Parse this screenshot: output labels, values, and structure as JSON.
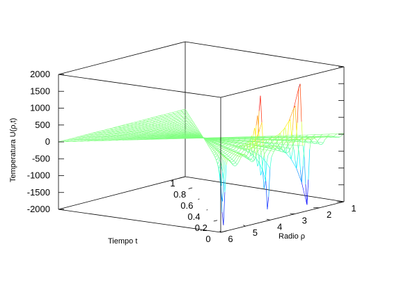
{
  "chart_data": {
    "type": "surface-3d",
    "title": "",
    "xlabel": "Tiempo t",
    "ylabel": "Radio ρ",
    "zlabel": "Temperatura U(ρ,t)",
    "x_ticks": [
      "1",
      "0.8",
      "0.6",
      "0.4",
      "0.2",
      "0"
    ],
    "y_ticks": [
      "1",
      "2",
      "3",
      "4",
      "5",
      "6"
    ],
    "z_ticks": [
      "2000",
      "1500",
      "1000",
      "500",
      "0",
      "-500",
      "-1000",
      "-1500",
      "-2000"
    ],
    "xlim": [
      0,
      1
    ],
    "ylim": [
      1,
      6
    ],
    "zlim": [
      -2000,
      2000
    ],
    "colormap": "jet",
    "colors": {
      "low": "#0022cc",
      "mid": "#7fff66",
      "high": "#dd3300",
      "axes": "#000000"
    },
    "grid": false,
    "legend": false,
    "features": [
      {
        "kind": "trough",
        "radius": 5.9,
        "time": 0.0,
        "value": -1900
      },
      {
        "kind": "spike",
        "radius": 4.4,
        "time": 0.0,
        "value": 1650
      },
      {
        "kind": "trough",
        "radius": 4.1,
        "time": 0.0,
        "value": -1600
      },
      {
        "kind": "spike",
        "radius": 2.8,
        "time": 0.0,
        "value": 1980
      },
      {
        "kind": "trough",
        "radius": 2.5,
        "time": 0.0,
        "value": -1750
      }
    ]
  }
}
